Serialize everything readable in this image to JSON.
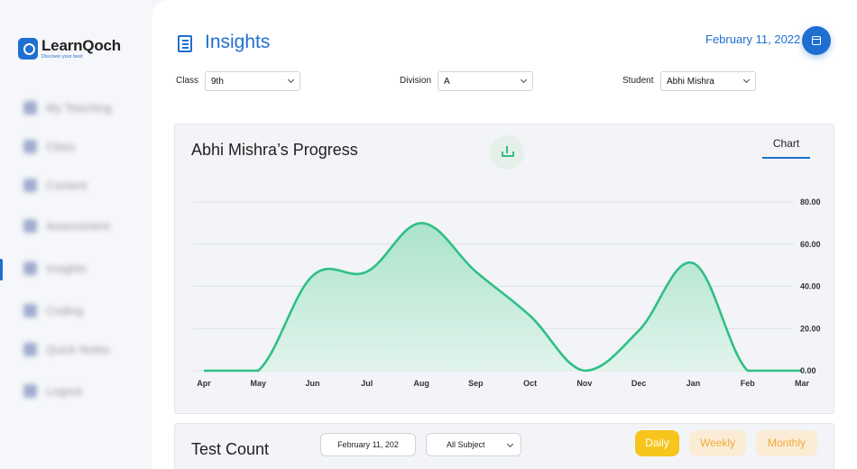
{
  "brand": {
    "name": "LearnQoch",
    "tagline": "Discover your best"
  },
  "sidebar": {
    "items": [
      {
        "label": "My Teaching",
        "icon": "book-icon"
      },
      {
        "label": "Class",
        "icon": "class-icon"
      },
      {
        "label": "Content",
        "icon": "content-icon"
      },
      {
        "label": "Assessment",
        "icon": "clipboard-icon"
      },
      {
        "label": "Insights",
        "icon": "insights-icon",
        "active": true
      },
      {
        "label": "Coding",
        "icon": "code-icon"
      },
      {
        "label": "Quick Notes",
        "icon": "note-icon"
      },
      {
        "label": "Logout",
        "icon": "logout-icon"
      }
    ]
  },
  "header": {
    "title": "Insights",
    "date": "February 11, 2022"
  },
  "filters": {
    "class_label": "Class",
    "class_value": "9th",
    "division_label": "Division",
    "division_value": "A",
    "student_label": "Student",
    "student_value": "Abhi Mishra"
  },
  "progress": {
    "title": "Abhi Mishra’s Progress",
    "tab_label": "Chart"
  },
  "chart_data": {
    "type": "area",
    "title": "Abhi Mishra’s Progress",
    "categories": [
      "Apr",
      "May",
      "Jun",
      "Jul",
      "Aug",
      "Sep",
      "Oct",
      "Nov",
      "Dec",
      "Jan",
      "Feb",
      "Mar"
    ],
    "values": [
      0,
      0,
      45,
      47,
      70,
      47,
      26,
      0,
      19,
      51,
      0,
      0
    ],
    "yticks": [
      "0.00",
      "20.00",
      "40.00",
      "60.00",
      "80.00"
    ],
    "ylim": [
      0,
      80
    ],
    "y_axis_side": "right",
    "grid": true,
    "colors": {
      "line": "#2fbf87",
      "fill_top": "#9fe0c4",
      "fill_bottom": "#def4ea"
    }
  },
  "test_count": {
    "title": "Test Count",
    "date": "February 11, 202",
    "subject": "All Subject",
    "periods": {
      "daily": "Daily",
      "weekly": "Weekly",
      "monthly": "Monthly"
    }
  }
}
